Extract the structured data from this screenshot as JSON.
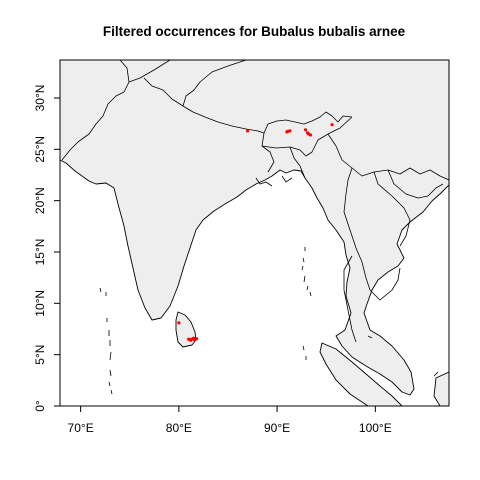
{
  "title": "Filtered occurrences for Bubalus bubalis arnee",
  "x_ticks": [
    {
      "value": 70,
      "label": "70°E"
    },
    {
      "value": 80,
      "label": "80°E"
    },
    {
      "value": 90,
      "label": "90°E"
    },
    {
      "value": 100,
      "label": "100°E"
    }
  ],
  "y_ticks": [
    {
      "value": 0,
      "label": "0°"
    },
    {
      "value": 5,
      "label": "5°N"
    },
    {
      "value": 10,
      "label": "10°N"
    },
    {
      "value": 15,
      "label": "15°N"
    },
    {
      "value": 20,
      "label": "20°N"
    },
    {
      "value": 25,
      "label": "25°N"
    },
    {
      "value": 30,
      "label": "30°N"
    }
  ],
  "extent": {
    "lon": [
      67.9,
      107.5
    ],
    "lat": [
      0,
      33.7
    ]
  },
  "colors": {
    "land": "#eeeeee",
    "occurrence": "#ff0000"
  },
  "occurrences": [
    {
      "lon": 87.0,
      "lat": 26.8
    },
    {
      "lon": 91.0,
      "lat": 26.7
    },
    {
      "lon": 91.1,
      "lat": 26.75
    },
    {
      "lon": 91.3,
      "lat": 26.8
    },
    {
      "lon": 92.9,
      "lat": 26.9
    },
    {
      "lon": 93.1,
      "lat": 26.6
    },
    {
      "lon": 93.2,
      "lat": 26.5
    },
    {
      "lon": 93.4,
      "lat": 26.4
    },
    {
      "lon": 95.6,
      "lat": 27.4
    },
    {
      "lon": 80.0,
      "lat": 8.1
    },
    {
      "lon": 81.0,
      "lat": 6.5
    },
    {
      "lon": 81.2,
      "lat": 6.4
    },
    {
      "lon": 81.3,
      "lat": 6.5
    },
    {
      "lon": 81.5,
      "lat": 6.6
    },
    {
      "lon": 81.6,
      "lat": 6.45
    },
    {
      "lon": 81.8,
      "lat": 6.55
    }
  ]
}
